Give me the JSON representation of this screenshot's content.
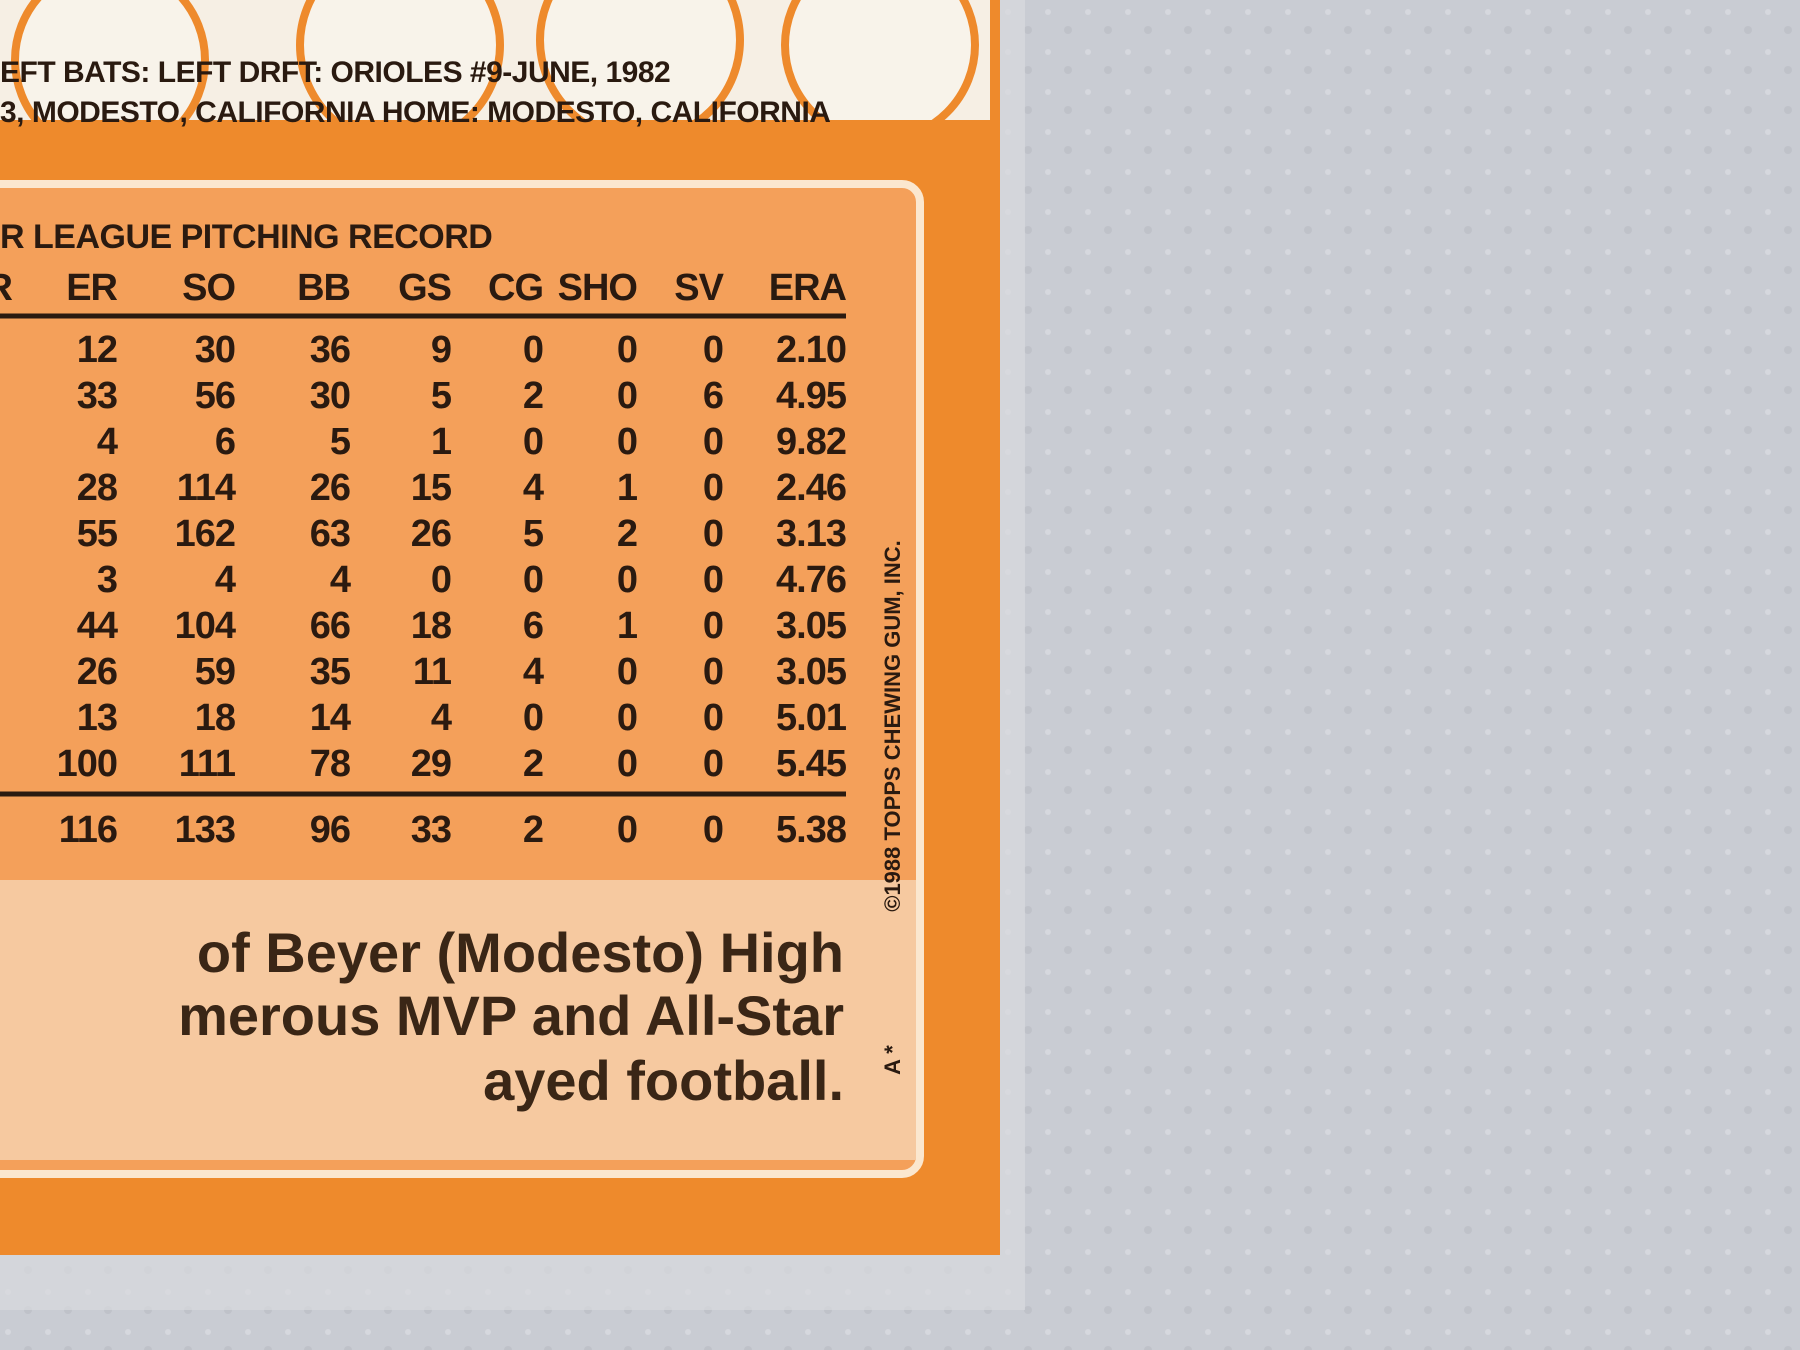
{
  "header": {
    "line1": "EFT   BATS: LEFT   DRFT: ORIOLES #9-JUNE, 1982",
    "line2": "3, MODESTO, CALIFORNIA    HOME: MODESTO, CALIFORNIA"
  },
  "table": {
    "title": "R LEAGUE PITCHING RECORD",
    "partial_column": "R",
    "columns": [
      "ER",
      "SO",
      "BB",
      "GS",
      "CG",
      "SHO",
      "SV",
      "ERA"
    ],
    "rows": [
      [
        "12",
        "30",
        "36",
        "9",
        "0",
        "0",
        "0",
        "2.10"
      ],
      [
        "33",
        "56",
        "30",
        "5",
        "2",
        "0",
        "6",
        "4.95"
      ],
      [
        "4",
        "6",
        "5",
        "1",
        "0",
        "0",
        "0",
        "9.82"
      ],
      [
        "28",
        "114",
        "26",
        "15",
        "4",
        "1",
        "0",
        "2.46"
      ],
      [
        "55",
        "162",
        "63",
        "26",
        "5",
        "2",
        "0",
        "3.13"
      ],
      [
        "3",
        "4",
        "4",
        "0",
        "0",
        "0",
        "0",
        "4.76"
      ],
      [
        "44",
        "104",
        "66",
        "18",
        "6",
        "1",
        "0",
        "3.05"
      ],
      [
        "26",
        "59",
        "35",
        "11",
        "4",
        "0",
        "0",
        "3.05"
      ],
      [
        "13",
        "18",
        "14",
        "4",
        "0",
        "0",
        "0",
        "5.01"
      ],
      [
        "100",
        "111",
        "78",
        "29",
        "2",
        "0",
        "0",
        "5.45"
      ]
    ],
    "totals": [
      "116",
      "133",
      "96",
      "33",
      "2",
      "0",
      "0",
      "5.38"
    ]
  },
  "bio": {
    "lines": [
      "of Beyer (Modesto) High",
      "merous MVP and All-Star",
      "ayed football."
    ]
  },
  "copyright": "©1988 TOPPS CHEWING GUM, INC.",
  "code": "A *"
}
